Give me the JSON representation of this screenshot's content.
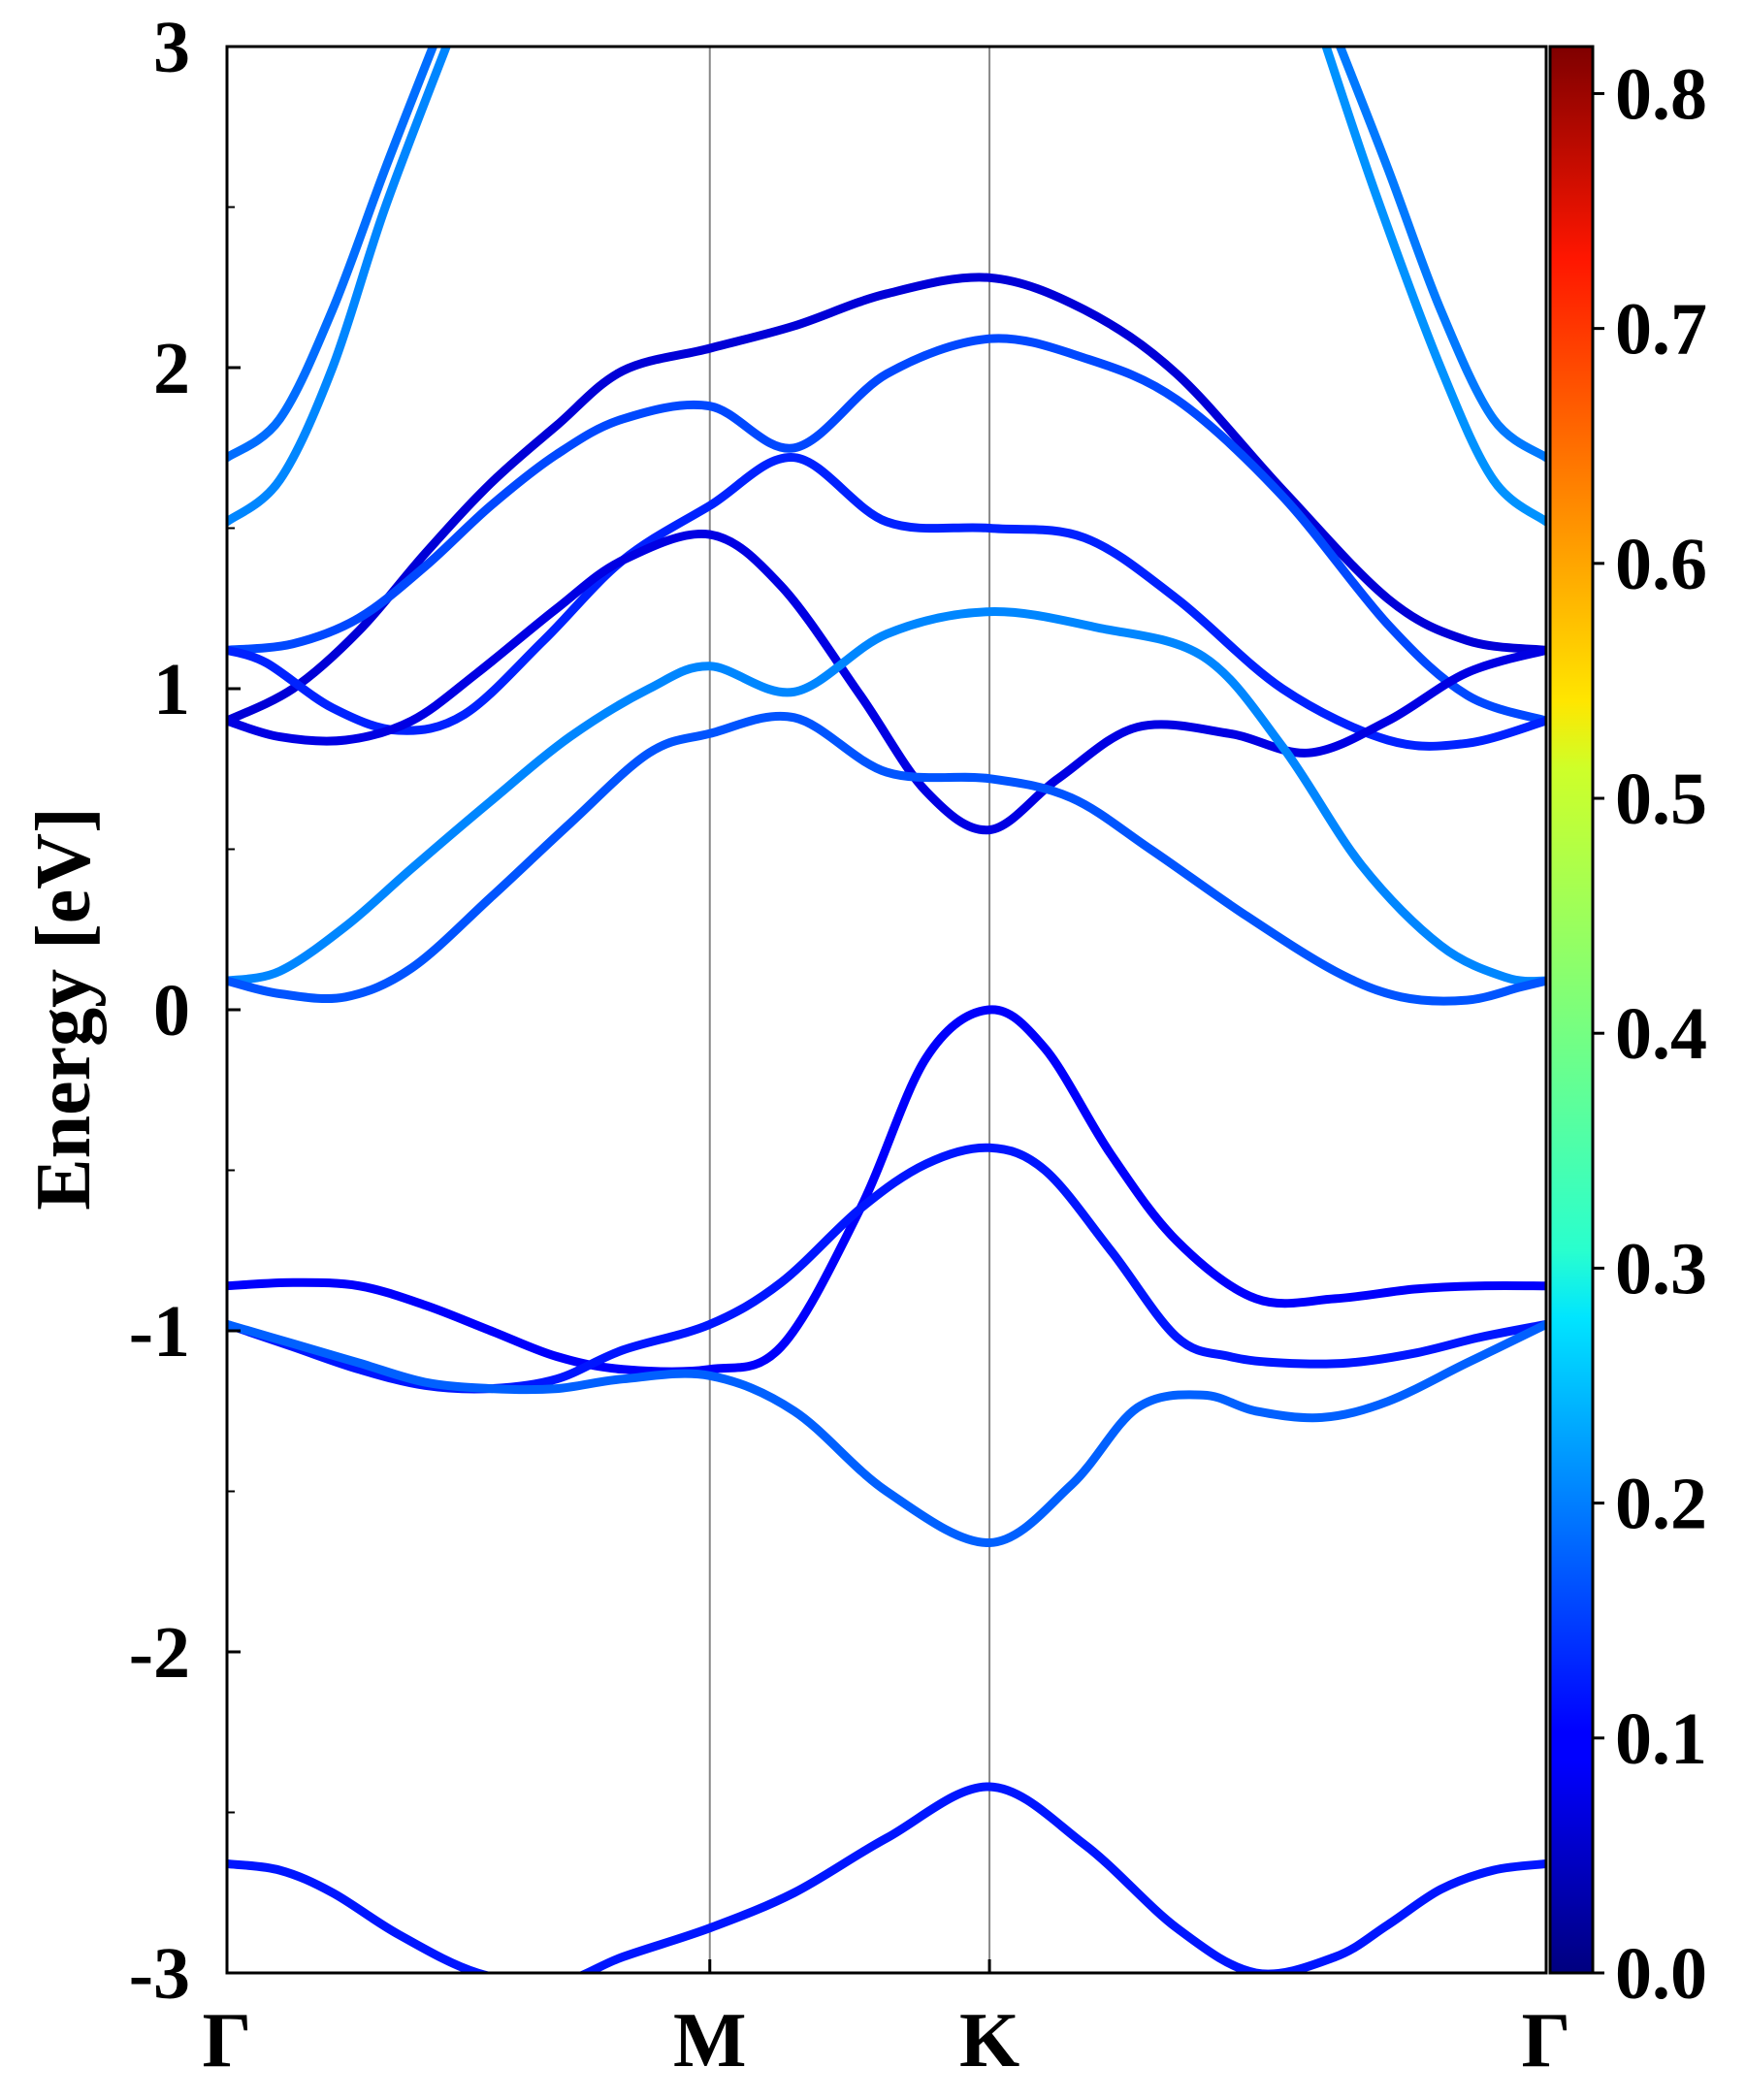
{
  "chart_data": {
    "type": "line",
    "title": "",
    "xlabel": "",
    "ylabel": "Energy [eV]",
    "ylim": [
      -3,
      3
    ],
    "y_ticks": [
      "3",
      "2",
      "1",
      "0",
      "-1",
      "-2",
      "-3"
    ],
    "y_tick_values": [
      3,
      2,
      1,
      0,
      -1,
      -2,
      -3
    ],
    "y_minor_step": 0.5,
    "k_points": [
      {
        "label": "Γ",
        "x": 0.0
      },
      {
        "label": "M",
        "x": 0.366
      },
      {
        "label": "K",
        "x": 0.578
      },
      {
        "label": "Γ",
        "x": 1.0
      }
    ],
    "grid": false,
    "colorbar": {
      "colormap": "jet",
      "range": [
        0.0,
        0.82
      ],
      "ticks": [
        "0.0",
        "0.1",
        "0.2",
        "0.3",
        "0.4",
        "0.5",
        "0.6",
        "0.7",
        "0.8"
      ],
      "tick_values": [
        0.0,
        0.1,
        0.2,
        0.3,
        0.4,
        0.5,
        0.6,
        0.7,
        0.8
      ]
    },
    "series": [
      {
        "x": [
          0,
          0.04,
          0.08,
          0.12,
          0.16
        ],
        "y": [
          1.72,
          1.84,
          2.18,
          2.62,
          3.04
        ],
        "c": 0.19
      },
      {
        "x": [
          0,
          0.04,
          0.08,
          0.12,
          0.17
        ],
        "y": [
          1.52,
          1.65,
          2.0,
          2.5,
          3.04
        ],
        "c": 0.21
      },
      {
        "x": [
          0.84,
          0.88,
          0.92,
          0.96,
          1.0
        ],
        "y": [
          3.04,
          2.62,
          2.18,
          1.84,
          1.72
        ],
        "c": 0.2
      },
      {
        "x": [
          0.83,
          0.87,
          0.92,
          0.96,
          1.0
        ],
        "y": [
          3.04,
          2.55,
          2.0,
          1.65,
          1.52
        ],
        "c": 0.22
      },
      {
        "x": [
          0,
          0.05,
          0.1,
          0.15,
          0.2,
          0.25,
          0.3,
          0.366,
          0.43,
          0.5,
          0.578,
          0.65,
          0.72,
          0.8,
          0.88,
          0.94,
          1.0
        ],
        "y": [
          0.9,
          1.0,
          1.18,
          1.42,
          1.64,
          1.82,
          1.99,
          2.06,
          2.13,
          2.23,
          2.28,
          2.18,
          1.98,
          1.62,
          1.28,
          1.15,
          1.12
        ],
        "c": 0.07
      },
      {
        "x": [
          0,
          0.05,
          0.1,
          0.15,
          0.2,
          0.25,
          0.3,
          0.366,
          0.43,
          0.5,
          0.578,
          0.65,
          0.72,
          0.8,
          0.88,
          0.94,
          1.0
        ],
        "y": [
          1.12,
          1.14,
          1.22,
          1.38,
          1.57,
          1.73,
          1.84,
          1.88,
          1.75,
          1.98,
          2.09,
          2.03,
          1.9,
          1.6,
          1.2,
          0.98,
          0.9
        ],
        "c": 0.16
      },
      {
        "x": [
          0,
          0.03,
          0.08,
          0.13,
          0.18,
          0.24,
          0.3,
          0.366,
          0.43,
          0.5,
          0.578,
          0.65,
          0.72,
          0.8,
          0.88,
          0.94,
          1.0
        ],
        "y": [
          1.12,
          1.08,
          0.94,
          0.87,
          0.92,
          1.15,
          1.4,
          1.57,
          1.72,
          1.52,
          1.5,
          1.47,
          1.28,
          1.0,
          0.84,
          0.83,
          0.9
        ],
        "c": 0.13
      },
      {
        "x": [
          0,
          0.04,
          0.09,
          0.14,
          0.19,
          0.25,
          0.3,
          0.366,
          0.42,
          0.48,
          0.53,
          0.578,
          0.63,
          0.69,
          0.76,
          0.82,
          0.88,
          0.94,
          1.0
        ],
        "y": [
          0.9,
          0.85,
          0.84,
          0.9,
          1.05,
          1.25,
          1.4,
          1.48,
          1.32,
          0.98,
          0.68,
          0.56,
          0.72,
          0.88,
          0.86,
          0.8,
          0.9,
          1.05,
          1.12
        ],
        "c": 0.08
      },
      {
        "x": [
          0,
          0.04,
          0.09,
          0.14,
          0.2,
          0.26,
          0.32,
          0.366,
          0.43,
          0.5,
          0.578,
          0.66,
          0.74,
          0.8,
          0.86,
          0.92,
          0.97,
          1.0
        ],
        "y": [
          0.09,
          0.12,
          0.26,
          0.44,
          0.65,
          0.85,
          1.0,
          1.07,
          0.99,
          1.17,
          1.24,
          1.19,
          1.1,
          0.82,
          0.45,
          0.2,
          0.1,
          0.09
        ],
        "c": 0.21
      },
      {
        "x": [
          0,
          0.04,
          0.09,
          0.14,
          0.2,
          0.26,
          0.32,
          0.366,
          0.43,
          0.5,
          0.578,
          0.64,
          0.7,
          0.77,
          0.84,
          0.89,
          0.94,
          0.98,
          1.0
        ],
        "y": [
          0.09,
          0.05,
          0.04,
          0.13,
          0.35,
          0.58,
          0.8,
          0.86,
          0.91,
          0.74,
          0.72,
          0.66,
          0.5,
          0.3,
          0.12,
          0.04,
          0.03,
          0.07,
          0.09
        ],
        "c": 0.17
      },
      {
        "x": [
          0,
          0.05,
          0.1,
          0.15,
          0.2,
          0.25,
          0.3,
          0.366,
          0.42,
          0.48,
          0.53,
          0.578,
          0.62,
          0.67,
          0.72,
          0.78,
          0.84,
          0.9,
          0.95,
          1.0
        ],
        "y": [
          -0.86,
          -0.85,
          -0.86,
          -0.92,
          -1.0,
          -1.08,
          -1.12,
          -1.12,
          -1.05,
          -0.62,
          -0.15,
          0.0,
          -0.12,
          -0.45,
          -0.72,
          -0.9,
          -0.9,
          -0.87,
          -0.86,
          -0.86
        ],
        "c": 0.1
      },
      {
        "x": [
          0,
          0.05,
          0.1,
          0.15,
          0.2,
          0.25,
          0.3,
          0.366,
          0.42,
          0.48,
          0.53,
          0.578,
          0.62,
          0.67,
          0.72,
          0.76,
          0.8,
          0.85,
          0.9,
          0.95,
          1.0
        ],
        "y": [
          -0.98,
          -1.05,
          -1.12,
          -1.17,
          -1.18,
          -1.15,
          -1.06,
          -0.98,
          -0.85,
          -0.62,
          -0.48,
          -0.43,
          -0.5,
          -0.75,
          -1.02,
          -1.08,
          -1.1,
          -1.1,
          -1.07,
          -1.02,
          -0.98
        ],
        "c": 0.12
      },
      {
        "x": [
          0,
          0.05,
          0.1,
          0.15,
          0.2,
          0.25,
          0.3,
          0.366,
          0.43,
          0.5,
          0.578,
          0.64,
          0.69,
          0.74,
          0.78,
          0.83,
          0.88,
          0.94,
          1.0
        ],
        "y": [
          -0.98,
          -1.04,
          -1.1,
          -1.16,
          -1.18,
          -1.18,
          -1.15,
          -1.14,
          -1.25,
          -1.5,
          -1.66,
          -1.48,
          -1.24,
          -1.2,
          -1.25,
          -1.27,
          -1.22,
          -1.1,
          -0.98
        ],
        "c": 0.18
      },
      {
        "x": [
          0,
          0.04,
          0.08,
          0.13,
          0.19,
          0.25,
          0.3,
          0.366,
          0.43,
          0.5,
          0.578,
          0.65,
          0.72,
          0.78,
          0.84,
          0.88,
          0.92,
          0.96,
          1.0
        ],
        "y": [
          -2.66,
          -2.68,
          -2.75,
          -2.88,
          -3.0,
          -3.03,
          -2.95,
          -2.86,
          -2.75,
          -2.58,
          -2.42,
          -2.6,
          -2.86,
          -3.0,
          -2.95,
          -2.85,
          -2.74,
          -2.68,
          -2.66
        ],
        "c": 0.12
      }
    ]
  }
}
